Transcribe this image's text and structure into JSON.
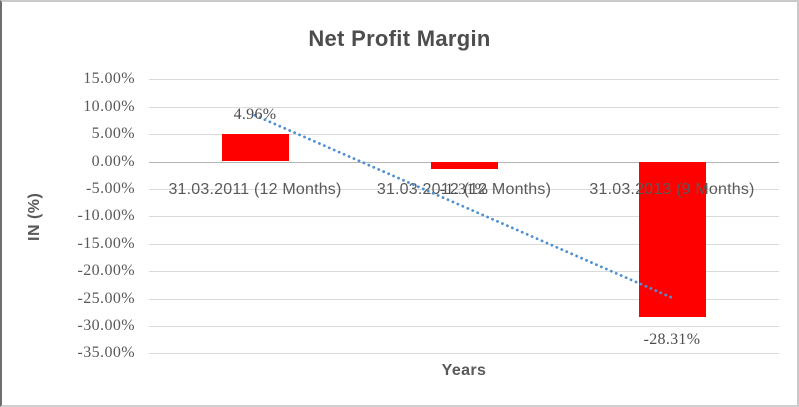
{
  "chart_data": {
    "type": "bar",
    "title": "Net Profit Margin",
    "xlabel": "Years",
    "ylabel": "IN (%)",
    "categories": [
      "31.03.2011 (12 Months)",
      "31.03.2012 (12 Months)",
      "31.03.2013 (9 Months)"
    ],
    "values": [
      4.96,
      -1.31,
      -28.31
    ],
    "data_labels": [
      "4.96%",
      "-1.31%",
      "-28.31%"
    ],
    "ylim": [
      -35,
      15
    ],
    "ytick_step": 5,
    "ytick_labels": [
      "15.00%",
      "10.00%",
      "5.00%",
      "0.00%",
      "-5.00%",
      "-10.00%",
      "-15.00%",
      "-20.00%",
      "-25.00%",
      "-30.00%",
      "-35.00%"
    ],
    "grid": true,
    "legend": false,
    "bar_color": "#ff0000",
    "gridline_color": "#dadada",
    "zero_axis_color": "#b5b5b5",
    "text_color": "#595959",
    "trendline": {
      "type": "linear",
      "style": "dotted",
      "color": "#4f90d2",
      "start_value": 8.42,
      "end_value": -24.86
    }
  }
}
